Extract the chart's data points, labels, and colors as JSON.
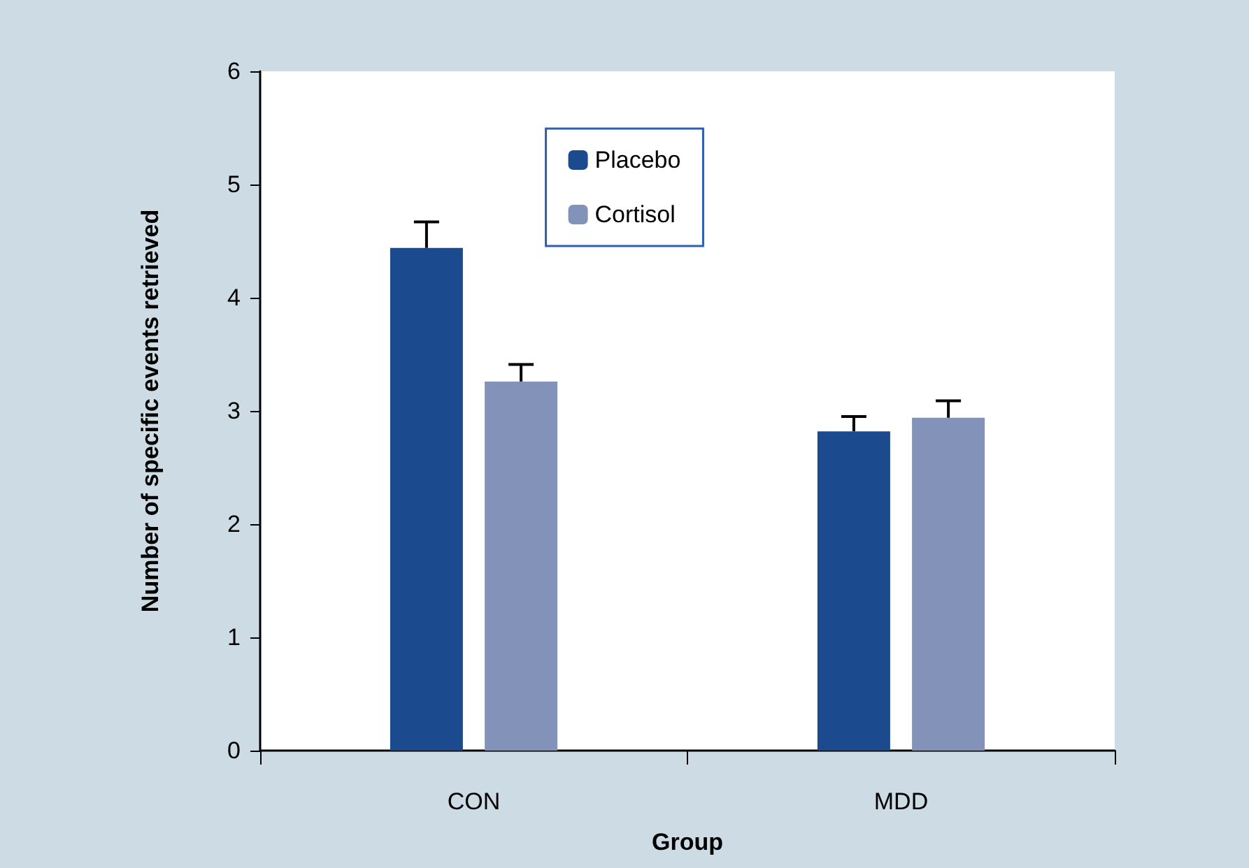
{
  "chart_data": {
    "type": "bar",
    "xlabel": "Group",
    "ylabel": "Number of specific events retrieved",
    "categories": [
      "CON",
      "MDD"
    ],
    "series": [
      {
        "name": "Placebo",
        "color": "#1c4a8e",
        "values": [
          4.44,
          2.82
        ],
        "errors": [
          [
            4.44,
            4.67
          ],
          [
            2.82,
            2.95
          ]
        ]
      },
      {
        "name": "Cortisol",
        "color": "#8392b8",
        "values": [
          3.26,
          2.94
        ],
        "errors": [
          [
            3.26,
            3.41
          ],
          [
            2.94,
            3.09
          ]
        ]
      }
    ],
    "ylim": [
      0,
      6
    ],
    "yticks": [
      0,
      1,
      2,
      3,
      4,
      5,
      6
    ],
    "grid": false,
    "legend": "top"
  }
}
